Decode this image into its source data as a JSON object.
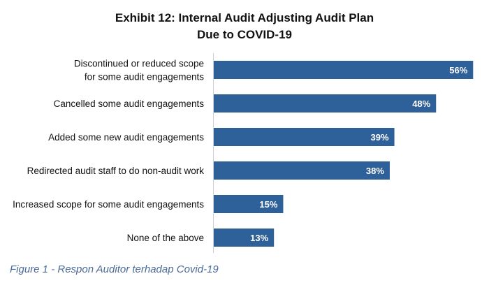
{
  "chart_data": {
    "type": "bar",
    "orientation": "horizontal",
    "title": [
      "Exhibit 12: Internal Audit Adjusting Audit Plan",
      "Due to COVID-19"
    ],
    "categories": [
      [
        "Discontinued or reduced scope",
        "for some audit engagements"
      ],
      [
        "Cancelled some audit engagements"
      ],
      [
        "Added some new audit engagements"
      ],
      [
        "Redirected audit staff to do non-audit work"
      ],
      [
        "Increased scope for some audit engagements"
      ],
      [
        "None of the above"
      ]
    ],
    "values": [
      56,
      48,
      39,
      38,
      15,
      13
    ],
    "data_labels": [
      "56%",
      "48%",
      "39%",
      "38%",
      "15%",
      "13%"
    ],
    "xlim": [
      0,
      60
    ],
    "unit": "%",
    "bar_color": "#2e6199",
    "grid": false
  },
  "caption": "Figure 1 - Respon Auditor terhadap Covid-19"
}
